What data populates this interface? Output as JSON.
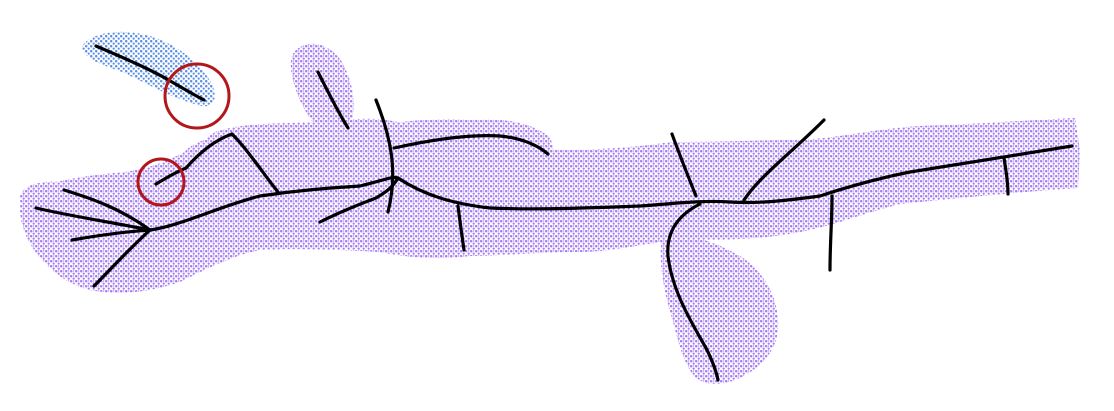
{
  "figure": {
    "background_color": "#ffffff",
    "point_cloud_color": "#a77bf3",
    "detached_segment_color": "#5b8fe6",
    "skeleton_color": "#000000",
    "highlight_circle_color": "#b2181b",
    "highlight_circle_count": 2
  }
}
